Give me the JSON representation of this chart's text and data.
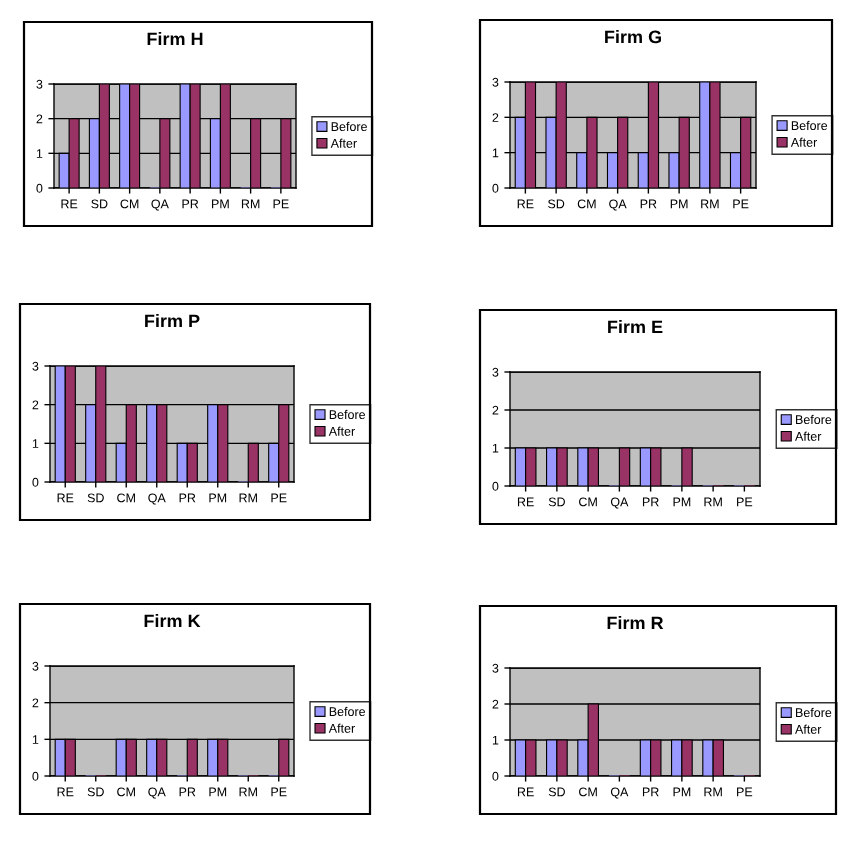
{
  "chart_data": [
    {
      "type": "bar",
      "title": "Firm H",
      "categories": [
        "RE",
        "SD",
        "CM",
        "QA",
        "PR",
        "PM",
        "RM",
        "PE"
      ],
      "series": [
        {
          "name": "Before",
          "color": "#9999ff",
          "values": [
            1,
            2,
            3,
            0,
            3,
            2,
            0,
            0
          ]
        },
        {
          "name": "After",
          "color": "#993366",
          "values": [
            2,
            3,
            3,
            2,
            3,
            3,
            2,
            2
          ]
        }
      ],
      "ylim": [
        0,
        3
      ],
      "yticks": [
        0,
        1,
        2,
        3
      ],
      "grid": "y",
      "legend": "right"
    },
    {
      "type": "bar",
      "title": "Firm G",
      "categories": [
        "RE",
        "SD",
        "CM",
        "QA",
        "PR",
        "PM",
        "RM",
        "PE"
      ],
      "series": [
        {
          "name": "Before",
          "color": "#9999ff",
          "values": [
            2,
            2,
            1,
            1,
            1,
            1,
            3,
            1
          ]
        },
        {
          "name": "After",
          "color": "#993366",
          "values": [
            3,
            3,
            2,
            2,
            3,
            2,
            3,
            2
          ]
        }
      ],
      "ylim": [
        0,
        3
      ],
      "yticks": [
        0,
        1,
        2,
        3
      ],
      "grid": "y",
      "legend": "right"
    },
    {
      "type": "bar",
      "title": "Firm P",
      "categories": [
        "RE",
        "SD",
        "CM",
        "QA",
        "PR",
        "PM",
        "RM",
        "PE"
      ],
      "series": [
        {
          "name": "Before",
          "color": "#9999ff",
          "values": [
            3,
            2,
            1,
            2,
            1,
            2,
            0,
            1
          ]
        },
        {
          "name": "After",
          "color": "#993366",
          "values": [
            3,
            3,
            2,
            2,
            1,
            2,
            1,
            2
          ]
        }
      ],
      "ylim": [
        0,
        3
      ],
      "yticks": [
        0,
        1,
        2,
        3
      ],
      "grid": "y",
      "legend": "right"
    },
    {
      "type": "bar",
      "title": "Firm E",
      "categories": [
        "RE",
        "SD",
        "CM",
        "QA",
        "PR",
        "PM",
        "RM",
        "PE"
      ],
      "series": [
        {
          "name": "Before",
          "color": "#9999ff",
          "values": [
            1,
            1,
            1,
            0,
            1,
            0,
            0,
            0
          ]
        },
        {
          "name": "After",
          "color": "#993366",
          "values": [
            1,
            1,
            1,
            1,
            1,
            1,
            0,
            0
          ]
        }
      ],
      "ylim": [
        0,
        3
      ],
      "yticks": [
        0,
        1,
        2,
        3
      ],
      "grid": "y",
      "legend": "right"
    },
    {
      "type": "bar",
      "title": "Firm K",
      "categories": [
        "RE",
        "SD",
        "CM",
        "QA",
        "PR",
        "PM",
        "RM",
        "PE"
      ],
      "series": [
        {
          "name": "Before",
          "color": "#9999ff",
          "values": [
            1,
            0,
            1,
            1,
            0,
            1,
            0,
            0
          ]
        },
        {
          "name": "After",
          "color": "#993366",
          "values": [
            1,
            0,
            1,
            1,
            1,
            1,
            0,
            1
          ]
        }
      ],
      "ylim": [
        0,
        3
      ],
      "yticks": [
        0,
        1,
        2,
        3
      ],
      "grid": "y",
      "legend": "right"
    },
    {
      "type": "bar",
      "title": "Firm R",
      "categories": [
        "RE",
        "SD",
        "CM",
        "QA",
        "PR",
        "PM",
        "RM",
        "PE"
      ],
      "series": [
        {
          "name": "Before",
          "color": "#9999ff",
          "values": [
            1,
            1,
            1,
            0,
            1,
            1,
            1,
            0
          ]
        },
        {
          "name": "After",
          "color": "#993366",
          "values": [
            1,
            1,
            2,
            0,
            1,
            1,
            1,
            0
          ]
        }
      ],
      "ylim": [
        0,
        3
      ],
      "yticks": [
        0,
        1,
        2,
        3
      ],
      "grid": "y",
      "legend": "right"
    }
  ]
}
